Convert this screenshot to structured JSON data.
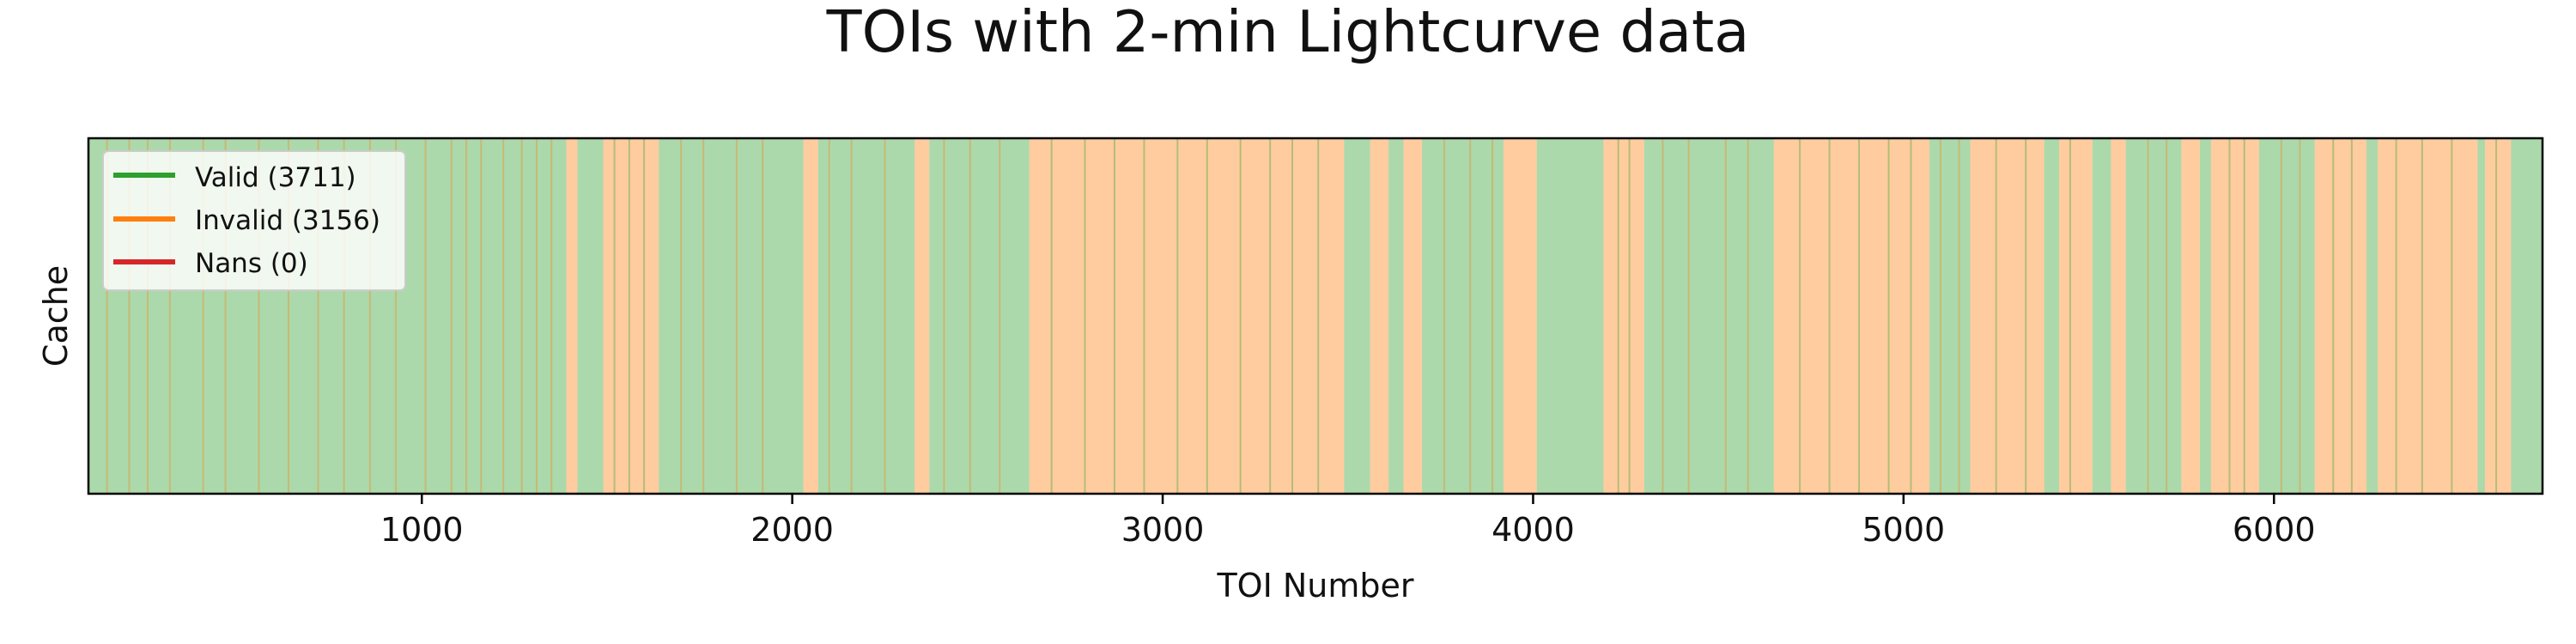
{
  "chart_data": {
    "type": "heatmap",
    "title": "TOIs with 2-min Lightcurve data",
    "xlabel": "TOI Number",
    "ylabel": "Cache",
    "xlim": [
      100,
      6725
    ],
    "xticks": [
      1000,
      2000,
      3000,
      4000,
      5000,
      6000
    ],
    "grid": false,
    "legend_position": "upper-left",
    "series": [
      {
        "name": "Valid",
        "count": 3711,
        "label": "Valid (3711)",
        "color": "#2ca02c"
      },
      {
        "name": "Invalid",
        "count": 3156,
        "label": "Invalid (3156)",
        "color": "#ff7f0e"
      },
      {
        "name": "Nans",
        "count": 0,
        "label": "Nans (0)",
        "color": "#d62728"
      }
    ],
    "segments": [
      {
        "start": 100,
        "end": 1390,
        "status": "Valid"
      },
      {
        "start": 1390,
        "end": 1420,
        "status": "Invalid"
      },
      {
        "start": 1420,
        "end": 1490,
        "status": "Valid"
      },
      {
        "start": 1490,
        "end": 1640,
        "status": "Invalid"
      },
      {
        "start": 1640,
        "end": 2030,
        "status": "Valid"
      },
      {
        "start": 2030,
        "end": 2070,
        "status": "Invalid"
      },
      {
        "start": 2070,
        "end": 2330,
        "status": "Valid"
      },
      {
        "start": 2330,
        "end": 2370,
        "status": "Invalid"
      },
      {
        "start": 2370,
        "end": 2640,
        "status": "Valid"
      },
      {
        "start": 2640,
        "end": 3490,
        "status": "Invalid"
      },
      {
        "start": 3490,
        "end": 3560,
        "status": "Valid"
      },
      {
        "start": 3560,
        "end": 3610,
        "status": "Invalid"
      },
      {
        "start": 3610,
        "end": 3650,
        "status": "Valid"
      },
      {
        "start": 3650,
        "end": 3700,
        "status": "Invalid"
      },
      {
        "start": 3700,
        "end": 3920,
        "status": "Valid"
      },
      {
        "start": 3920,
        "end": 4010,
        "status": "Invalid"
      },
      {
        "start": 4010,
        "end": 4190,
        "status": "Valid"
      },
      {
        "start": 4190,
        "end": 4300,
        "status": "Invalid"
      },
      {
        "start": 4300,
        "end": 4650,
        "status": "Valid"
      },
      {
        "start": 4650,
        "end": 5070,
        "status": "Invalid"
      },
      {
        "start": 5070,
        "end": 5180,
        "status": "Valid"
      },
      {
        "start": 5180,
        "end": 5380,
        "status": "Invalid"
      },
      {
        "start": 5380,
        "end": 5420,
        "status": "Valid"
      },
      {
        "start": 5420,
        "end": 5510,
        "status": "Invalid"
      },
      {
        "start": 5510,
        "end": 5560,
        "status": "Valid"
      },
      {
        "start": 5560,
        "end": 5600,
        "status": "Invalid"
      },
      {
        "start": 5600,
        "end": 5750,
        "status": "Valid"
      },
      {
        "start": 5750,
        "end": 5800,
        "status": "Invalid"
      },
      {
        "start": 5800,
        "end": 5830,
        "status": "Valid"
      },
      {
        "start": 5830,
        "end": 5960,
        "status": "Invalid"
      },
      {
        "start": 5960,
        "end": 6110,
        "status": "Valid"
      },
      {
        "start": 6110,
        "end": 6250,
        "status": "Invalid"
      },
      {
        "start": 6250,
        "end": 6280,
        "status": "Valid"
      },
      {
        "start": 6280,
        "end": 6550,
        "status": "Invalid"
      },
      {
        "start": 6550,
        "end": 6570,
        "status": "Valid"
      },
      {
        "start": 6570,
        "end": 6640,
        "status": "Invalid"
      },
      {
        "start": 6640,
        "end": 6725,
        "status": "Valid"
      }
    ],
    "scattered_minority_entries": [
      {
        "status": "Invalid",
        "x": [
          150,
          210,
          260,
          320,
          410,
          470,
          560,
          640,
          720,
          790,
          860,
          930,
          1010,
          1080,
          1120,
          1160,
          1220,
          1270,
          1310,
          1350,
          1700,
          1760,
          1850,
          1920,
          2100,
          2160,
          2250,
          2410,
          2480,
          2560,
          3760,
          3830,
          3890,
          4350,
          4420,
          4520,
          4580,
          5100,
          5150,
          5660,
          5710,
          6020,
          6070
        ]
      },
      {
        "status": "Valid",
        "x": [
          1520,
          1560,
          1600,
          2700,
          2790,
          2870,
          2950,
          3040,
          3120,
          3210,
          3290,
          3350,
          3420,
          4230,
          4260,
          4720,
          4800,
          4880,
          4960,
          5020,
          5250,
          5330,
          5450,
          5880,
          5920,
          6160,
          6210,
          6330,
          6400,
          6480,
          6600
        ]
      }
    ]
  }
}
